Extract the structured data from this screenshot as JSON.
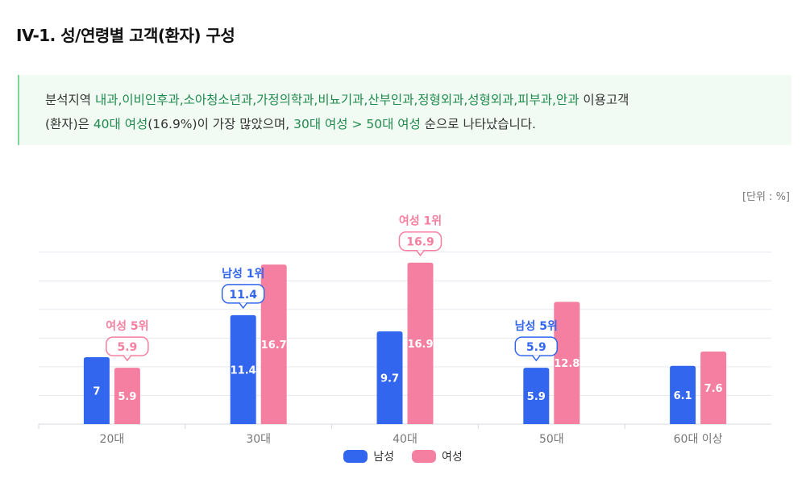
{
  "title": "IV-1. 성/연령별 고객(환자) 구성",
  "summary": {
    "line1": [
      {
        "text": "분석지역 ",
        "hl": false
      },
      {
        "text": "내과,이비인후과,소아청소년과,가정의학과,비뇨기과,산부인과,정형외과,성형외과,피부과,안과",
        "hl": true
      },
      {
        "text": " 이용고객",
        "hl": false
      }
    ],
    "line2": [
      {
        "text": "(환자)은 ",
        "hl": false
      },
      {
        "text": "40대 여성",
        "hl": true
      },
      {
        "text": "(16.9%)이 가장 많았으며, ",
        "hl": false
      },
      {
        "text": "30대 여성 > 50대 여성",
        "hl": true
      },
      {
        "text": " 순으로 나타났습니다.",
        "hl": false
      }
    ]
  },
  "unit_label": "[단위 : %]",
  "colors": {
    "male": "#3366ee",
    "female": "#f57fa0",
    "highlight_text": "#1f8a4c"
  },
  "chart_data": {
    "type": "bar",
    "categories": [
      "20대",
      "30대",
      "40대",
      "50대",
      "60대 이상"
    ],
    "series": [
      {
        "name": "남성",
        "values": [
          7,
          11.4,
          9.7,
          5.9,
          6.1
        ]
      },
      {
        "name": "여성",
        "values": [
          5.9,
          16.7,
          16.9,
          12.8,
          7.6
        ]
      }
    ],
    "ylim": [
      0,
      20
    ],
    "grid": true,
    "legend": "bottom-center",
    "callouts": [
      {
        "category": "20대",
        "series": "여성",
        "label": "여성 5위",
        "value": "5.9"
      },
      {
        "category": "30대",
        "series": "남성",
        "label": "남성 1위",
        "value": "11.4"
      },
      {
        "category": "40대",
        "series": "여성",
        "label": "여성 1위",
        "value": "16.9"
      },
      {
        "category": "50대",
        "series": "남성",
        "label": "남성 5위",
        "value": "5.9"
      }
    ]
  },
  "legend_items": [
    {
      "name": "남성",
      "color": "#3366ee"
    },
    {
      "name": "여성",
      "color": "#f57fa0"
    }
  ]
}
